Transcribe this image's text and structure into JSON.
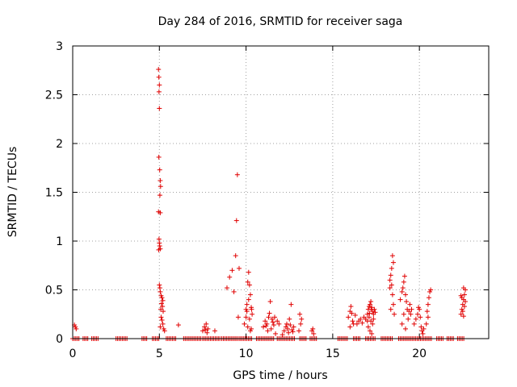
{
  "chart_data": {
    "type": "scatter",
    "title": "Day 284 of 2016, SRMTID for receiver saga",
    "xlabel": "GPS time / hours",
    "ylabel": "SRMTID / TECUs",
    "xlim": [
      0,
      24
    ],
    "ylim": [
      0,
      3
    ],
    "xticks": [
      0,
      5,
      10,
      15,
      20
    ],
    "yticks": [
      0,
      0.5,
      1,
      1.5,
      2,
      2.5,
      3
    ],
    "xtick_labels": [
      "0",
      "5",
      "10",
      "15",
      "20"
    ],
    "ytick_labels": [
      "0",
      "0.5",
      "1",
      "1.5",
      "2",
      "2.5",
      "3"
    ],
    "grid": true,
    "marker": "+",
    "series": [
      {
        "name": "SRMTID",
        "color": "#e00000",
        "points": [
          [
            0.1,
            0.14
          ],
          [
            0.15,
            0.12
          ],
          [
            0.2,
            0.1
          ],
          [
            4.95,
            2.76
          ],
          [
            4.97,
            2.68
          ],
          [
            5.0,
            2.6
          ],
          [
            4.98,
            2.53
          ],
          [
            5.0,
            2.36
          ],
          [
            4.97,
            1.86
          ],
          [
            5.02,
            1.73
          ],
          [
            5.05,
            1.62
          ],
          [
            5.07,
            1.56
          ],
          [
            5.03,
            1.47
          ],
          [
            4.95,
            1.3
          ],
          [
            5.05,
            1.29
          ],
          [
            4.98,
            1.02
          ],
          [
            5.0,
            0.98
          ],
          [
            5.02,
            0.95
          ],
          [
            4.96,
            0.91
          ],
          [
            5.05,
            0.92
          ],
          [
            5.0,
            0.55
          ],
          [
            5.03,
            0.52
          ],
          [
            5.05,
            0.48
          ],
          [
            5.1,
            0.44
          ],
          [
            5.15,
            0.42
          ],
          [
            5.2,
            0.39
          ],
          [
            5.12,
            0.36
          ],
          [
            5.18,
            0.33
          ],
          [
            5.08,
            0.3
          ],
          [
            5.22,
            0.28
          ],
          [
            5.1,
            0.22
          ],
          [
            5.15,
            0.19
          ],
          [
            5.2,
            0.15
          ],
          [
            5.05,
            0.12
          ],
          [
            5.25,
            0.1
          ],
          [
            5.3,
            0.08
          ],
          [
            6.1,
            0.14
          ],
          [
            7.5,
            0.08
          ],
          [
            7.6,
            0.12
          ],
          [
            7.7,
            0.15
          ],
          [
            7.8,
            0.1
          ],
          [
            7.75,
            0.06
          ],
          [
            7.65,
            0.09
          ],
          [
            8.2,
            0.08
          ],
          [
            8.9,
            0.52
          ],
          [
            9.05,
            0.63
          ],
          [
            9.2,
            0.7
          ],
          [
            9.3,
            0.48
          ],
          [
            9.4,
            0.85
          ],
          [
            9.5,
            1.68
          ],
          [
            9.45,
            1.21
          ],
          [
            9.6,
            0.72
          ],
          [
            9.55,
            0.22
          ],
          [
            9.9,
            0.15
          ],
          [
            10.0,
            0.3
          ],
          [
            10.05,
            0.35
          ],
          [
            10.1,
            0.58
          ],
          [
            10.15,
            0.68
          ],
          [
            10.2,
            0.55
          ],
          [
            10.25,
            0.45
          ],
          [
            10.3,
            0.32
          ],
          [
            10.35,
            0.25
          ],
          [
            10.2,
            0.2
          ],
          [
            10.1,
            0.12
          ],
          [
            10.3,
            0.1
          ],
          [
            10.25,
            0.08
          ],
          [
            10.05,
            0.28
          ],
          [
            10.15,
            0.4
          ],
          [
            10.32,
            0.3
          ],
          [
            10.0,
            0.22
          ],
          [
            11.0,
            0.12
          ],
          [
            11.1,
            0.18
          ],
          [
            11.2,
            0.15
          ],
          [
            11.3,
            0.22
          ],
          [
            11.35,
            0.26
          ],
          [
            11.4,
            0.38
          ],
          [
            11.5,
            0.2
          ],
          [
            11.55,
            0.17
          ],
          [
            11.6,
            0.14
          ],
          [
            11.45,
            0.1
          ],
          [
            11.25,
            0.08
          ],
          [
            11.15,
            0.13
          ],
          [
            11.7,
            0.05
          ],
          [
            11.8,
            0.18
          ],
          [
            11.9,
            0.15
          ],
          [
            11.65,
            0.22
          ],
          [
            12.1,
            0.04
          ],
          [
            12.2,
            0.08
          ],
          [
            12.3,
            0.12
          ],
          [
            12.4,
            0.1
          ],
          [
            12.45,
            0.06
          ],
          [
            12.5,
            0.2
          ],
          [
            12.6,
            0.35
          ],
          [
            12.55,
            0.14
          ],
          [
            12.65,
            0.09
          ],
          [
            12.7,
            0.07
          ],
          [
            12.75,
            0.12
          ],
          [
            12.35,
            0.15
          ],
          [
            13.1,
            0.25
          ],
          [
            13.2,
            0.2
          ],
          [
            13.15,
            0.15
          ],
          [
            13.05,
            0.08
          ],
          [
            13.8,
            0.08
          ],
          [
            13.9,
            0.05
          ],
          [
            13.85,
            0.1
          ],
          [
            15.9,
            0.22
          ],
          [
            16.0,
            0.28
          ],
          [
            16.05,
            0.33
          ],
          [
            16.1,
            0.26
          ],
          [
            16.15,
            0.18
          ],
          [
            16.2,
            0.15
          ],
          [
            16.0,
            0.12
          ],
          [
            16.3,
            0.24
          ],
          [
            16.4,
            0.15
          ],
          [
            16.5,
            0.18
          ],
          [
            16.6,
            0.2
          ],
          [
            16.7,
            0.16
          ],
          [
            16.8,
            0.22
          ],
          [
            16.9,
            0.2
          ],
          [
            17.0,
            0.25
          ],
          [
            17.05,
            0.3
          ],
          [
            17.1,
            0.33
          ],
          [
            17.15,
            0.35
          ],
          [
            17.2,
            0.38
          ],
          [
            17.25,
            0.32
          ],
          [
            17.3,
            0.28
          ],
          [
            17.35,
            0.25
          ],
          [
            17.1,
            0.22
          ],
          [
            17.2,
            0.18
          ],
          [
            17.3,
            0.15
          ],
          [
            17.05,
            0.12
          ],
          [
            17.15,
            0.08
          ],
          [
            17.25,
            0.05
          ],
          [
            17.4,
            0.3
          ],
          [
            17.45,
            0.27
          ],
          [
            17.0,
            0.18
          ],
          [
            17.35,
            0.2
          ],
          [
            17.12,
            0.26
          ],
          [
            17.22,
            0.3
          ],
          [
            18.3,
            0.6
          ],
          [
            18.35,
            0.65
          ],
          [
            18.4,
            0.72
          ],
          [
            18.45,
            0.85
          ],
          [
            18.5,
            0.78
          ],
          [
            18.4,
            0.55
          ],
          [
            18.45,
            0.45
          ],
          [
            18.5,
            0.35
          ],
          [
            18.35,
            0.3
          ],
          [
            18.55,
            0.25
          ],
          [
            18.3,
            0.52
          ],
          [
            18.9,
            0.4
          ],
          [
            19.0,
            0.48
          ],
          [
            19.05,
            0.52
          ],
          [
            19.1,
            0.58
          ],
          [
            19.15,
            0.64
          ],
          [
            19.2,
            0.45
          ],
          [
            19.25,
            0.38
          ],
          [
            19.3,
            0.3
          ],
          [
            19.1,
            0.25
          ],
          [
            19.35,
            0.2
          ],
          [
            19.0,
            0.15
          ],
          [
            19.2,
            0.1
          ],
          [
            19.4,
            0.28
          ],
          [
            19.45,
            0.35
          ],
          [
            19.5,
            0.25
          ],
          [
            19.55,
            0.3
          ],
          [
            19.7,
            0.15
          ],
          [
            19.8,
            0.2
          ],
          [
            19.9,
            0.25
          ],
          [
            20.0,
            0.3
          ],
          [
            20.05,
            0.22
          ],
          [
            20.1,
            0.12
          ],
          [
            20.15,
            0.08
          ],
          [
            20.2,
            0.05
          ],
          [
            20.25,
            0.1
          ],
          [
            19.95,
            0.32
          ],
          [
            20.4,
            0.15
          ],
          [
            20.5,
            0.35
          ],
          [
            20.55,
            0.42
          ],
          [
            20.6,
            0.48
          ],
          [
            20.65,
            0.5
          ],
          [
            20.45,
            0.28
          ],
          [
            20.5,
            0.22
          ],
          [
            22.4,
            0.25
          ],
          [
            22.45,
            0.3
          ],
          [
            22.5,
            0.35
          ],
          [
            22.55,
            0.4
          ],
          [
            22.6,
            0.45
          ],
          [
            22.65,
            0.5
          ],
          [
            22.55,
            0.52
          ],
          [
            22.45,
            0.42
          ],
          [
            22.5,
            0.28
          ],
          [
            22.6,
            0.33
          ],
          [
            22.65,
            0.38
          ],
          [
            22.4,
            0.44
          ],
          [
            22.55,
            0.23
          ]
        ],
        "zero_runs": [
          [
            0.0,
            0.4
          ],
          [
            0.6,
            0.9
          ],
          [
            1.1,
            1.5
          ],
          [
            2.5,
            3.2
          ],
          [
            4.0,
            4.3
          ],
          [
            4.6,
            5.0
          ],
          [
            5.4,
            6.0
          ],
          [
            6.4,
            7.4
          ],
          [
            7.5,
            8.5
          ],
          [
            8.6,
            9.5
          ],
          [
            9.6,
            10.4
          ],
          [
            10.6,
            11.6
          ],
          [
            11.8,
            12.8
          ],
          [
            13.1,
            13.5
          ],
          [
            13.7,
            14.1
          ],
          [
            15.3,
            15.9
          ],
          [
            16.2,
            16.6
          ],
          [
            16.9,
            17.5
          ],
          [
            17.8,
            18.5
          ],
          [
            18.8,
            20.7
          ],
          [
            21.0,
            21.4
          ],
          [
            21.6,
            22.0
          ],
          [
            22.2,
            22.6
          ]
        ]
      }
    ]
  }
}
